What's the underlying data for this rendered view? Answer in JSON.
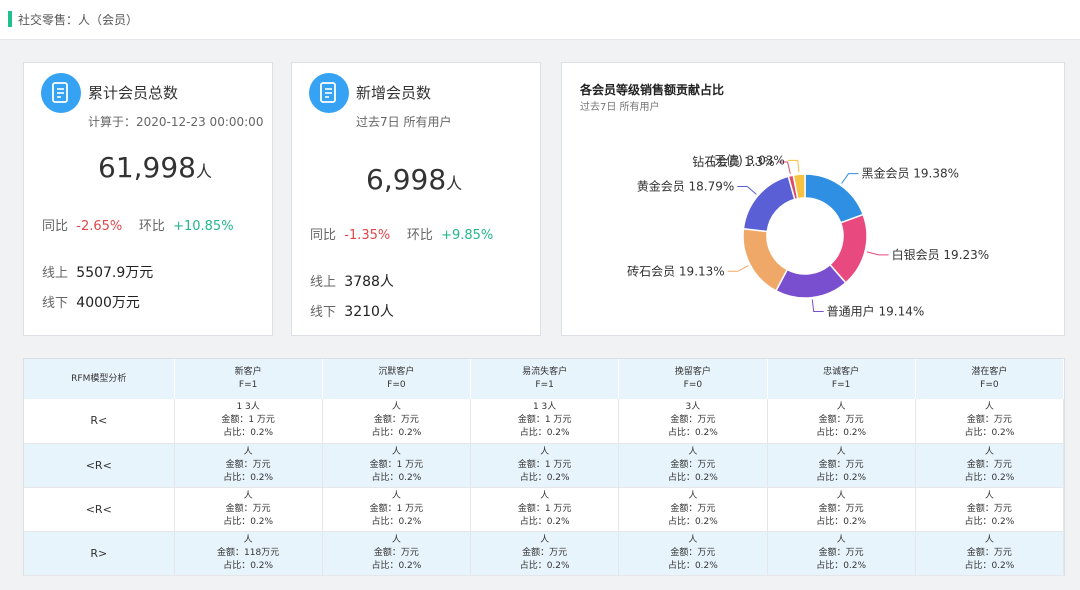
{
  "breadcrumb": "社交零售：人（会员）",
  "card_total": {
    "title": "累计会员总数",
    "subtitle": "计算于：2020-12-23 00:00:00",
    "value": "61,998",
    "unit": "人",
    "yoy_label": "同比",
    "yoy_value": "-2.65%",
    "mom_label": "环比",
    "mom_value": "+10.85%",
    "online_label": "线上",
    "online_value": "5507.9万元",
    "offline_label": "线下",
    "offline_value": "4000万元"
  },
  "card_new": {
    "title": "新增会员数",
    "subtitle": "过去7日 所有用户",
    "value": "6,998",
    "unit": "人",
    "yoy_label": "同比",
    "yoy_value": "-1.35%",
    "mom_label": "环比",
    "mom_value": "+9.85%",
    "online_label": "线上",
    "online_value": "3788人",
    "offline_label": "线下",
    "offline_value": "3210人"
  },
  "chart_data": {
    "type": "pie",
    "title": "各会员等级销售额贡献占比",
    "subtitle": "过去7日  所有用户",
    "donut": true,
    "slices": [
      {
        "label": "黑金会员",
        "value": 19.38,
        "color": "#2f8fe3"
      },
      {
        "label": "白银会员",
        "value": 19.23,
        "color": "#e84a7f"
      },
      {
        "label": "普通用户",
        "value": 19.14,
        "color": "#7a4fcf"
      },
      {
        "label": "砖石会员",
        "value": 19.13,
        "color": "#f0a868"
      },
      {
        "label": "黄金会员",
        "value": 18.79,
        "color": "#5b5fd6"
      },
      {
        "label": "钻石会员",
        "value": 1.3,
        "color": "#d94d6d"
      },
      {
        "label": "(无值)",
        "value": 3.03,
        "color": "#f5c242"
      }
    ],
    "labels": [
      "黑金会员 19.38%",
      "白银会员 19.23%",
      "普通用户 19.14%",
      "砖石会员 19.13%",
      "黄金会员 18.79%",
      "钻石会员 1.3%",
      "(无值) 3.03%"
    ]
  },
  "rfm": {
    "header": "RFM模型分析",
    "columns": [
      {
        "name": "新客户",
        "f": "F=1"
      },
      {
        "name": "沉默客户",
        "f": "F=0"
      },
      {
        "name": "易流失客户",
        "f": "F=1"
      },
      {
        "name": "挽留客户",
        "f": "F=0"
      },
      {
        "name": "忠诚客户",
        "f": "F=1"
      },
      {
        "name": "潜在客户",
        "f": "F=0"
      }
    ],
    "rows": [
      {
        "label": "R<",
        "cells": [
          [
            "1 3人",
            "金额：1 万元",
            "占比：0.2%"
          ],
          [
            "人",
            "金额：万元",
            "占比：0.2%"
          ],
          [
            "1 3人",
            "金额：1 万元",
            "占比：0.2%"
          ],
          [
            "3人",
            "金额：万元",
            "占比：0.2%"
          ],
          [
            "人",
            "金额：万元",
            "占比：0.2%"
          ],
          [
            "人",
            "金额：万元",
            "占比：0.2%"
          ]
        ]
      },
      {
        "label": "<R<",
        "cells": [
          [
            "人",
            "金额：万元",
            "占比：0.2%"
          ],
          [
            "人",
            "金额：1 万元",
            "占比：0.2%"
          ],
          [
            "人",
            "金额：1 万元",
            "占比：0.2%"
          ],
          [
            "人",
            "金额：万元",
            "占比：0.2%"
          ],
          [
            "人",
            "金额：万元",
            "占比：0.2%"
          ],
          [
            "人",
            "金额：万元",
            "占比：0.2%"
          ]
        ]
      },
      {
        "label": "<R<",
        "cells": [
          [
            "人",
            "金额：万元",
            "占比：0.2%"
          ],
          [
            "人",
            "金额：1 万元",
            "占比：0.2%"
          ],
          [
            "人",
            "金额：1 万元",
            "占比：0.2%"
          ],
          [
            "人",
            "金额：万元",
            "占比：0.2%"
          ],
          [
            "人",
            "金额：万元",
            "占比：0.2%"
          ],
          [
            "人",
            "金额：万元",
            "占比：0.2%"
          ]
        ]
      },
      {
        "label": "R>",
        "cells": [
          [
            "人",
            "金额：118万元",
            "占比：0.2%"
          ],
          [
            "人",
            "金额：万元",
            "占比：0.2%"
          ],
          [
            "人",
            "金额：万元",
            "占比：0.2%"
          ],
          [
            "人",
            "金额：万元",
            "占比：0.2%"
          ],
          [
            "人",
            "金额：万元",
            "占比：0.2%"
          ],
          [
            "人",
            "金额：万元",
            "占比：0.2%"
          ]
        ]
      }
    ]
  }
}
